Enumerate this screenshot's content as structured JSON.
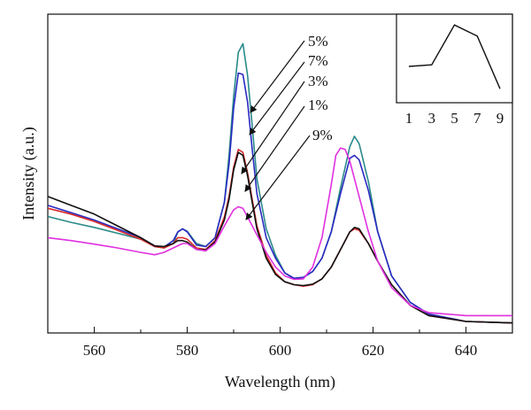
{
  "chart_data": {
    "type": "line",
    "xlabel": "Wavelength (nm)",
    "ylabel": "Intensity (a.u.)",
    "xlim": [
      550,
      650
    ],
    "ylim": [
      0,
      1
    ],
    "x_ticks": [
      560,
      580,
      600,
      620,
      640
    ],
    "y_ticks_shown": false,
    "grid": false,
    "series": [
      {
        "name": "5%",
        "color": "#2a8a8a",
        "points": [
          [
            550,
            0.372
          ],
          [
            555,
            0.352
          ],
          [
            560,
            0.335
          ],
          [
            565,
            0.315
          ],
          [
            570,
            0.295
          ],
          [
            573,
            0.27
          ],
          [
            575,
            0.265
          ],
          [
            577,
            0.28
          ],
          [
            578,
            0.32
          ],
          [
            579,
            0.33
          ],
          [
            580,
            0.322
          ],
          [
            582,
            0.28
          ],
          [
            584,
            0.27
          ],
          [
            586,
            0.3
          ],
          [
            588,
            0.42
          ],
          [
            589,
            0.58
          ],
          [
            590,
            0.78
          ],
          [
            591,
            0.93
          ],
          [
            592,
            0.96
          ],
          [
            593,
            0.85
          ],
          [
            594,
            0.68
          ],
          [
            595,
            0.5
          ],
          [
            597,
            0.33
          ],
          [
            599,
            0.24
          ],
          [
            601,
            0.18
          ],
          [
            603,
            0.16
          ],
          [
            605,
            0.165
          ],
          [
            607,
            0.185
          ],
          [
            609,
            0.23
          ],
          [
            611,
            0.32
          ],
          [
            613,
            0.47
          ],
          [
            615,
            0.61
          ],
          [
            616,
            0.645
          ],
          [
            617,
            0.62
          ],
          [
            619,
            0.49
          ],
          [
            621,
            0.32
          ],
          [
            624,
            0.17
          ],
          [
            628,
            0.08
          ],
          [
            632,
            0.04
          ],
          [
            640,
            0.015
          ],
          [
            650,
            0.01
          ]
        ]
      },
      {
        "name": "7%",
        "color": "#2a2ac0",
        "points": [
          [
            550,
            0.41
          ],
          [
            555,
            0.385
          ],
          [
            560,
            0.36
          ],
          [
            565,
            0.33
          ],
          [
            570,
            0.3
          ],
          [
            573,
            0.272
          ],
          [
            575,
            0.268
          ],
          [
            577,
            0.29
          ],
          [
            578,
            0.32
          ],
          [
            579,
            0.33
          ],
          [
            580,
            0.32
          ],
          [
            582,
            0.275
          ],
          [
            584,
            0.27
          ],
          [
            586,
            0.3
          ],
          [
            588,
            0.42
          ],
          [
            589,
            0.55
          ],
          [
            590,
            0.74
          ],
          [
            591,
            0.86
          ],
          [
            592,
            0.855
          ],
          [
            593,
            0.76
          ],
          [
            594,
            0.6
          ],
          [
            595,
            0.45
          ],
          [
            597,
            0.3
          ],
          [
            599,
            0.23
          ],
          [
            601,
            0.18
          ],
          [
            603,
            0.162
          ],
          [
            605,
            0.165
          ],
          [
            607,
            0.185
          ],
          [
            609,
            0.23
          ],
          [
            611,
            0.32
          ],
          [
            613,
            0.45
          ],
          [
            615,
            0.57
          ],
          [
            616,
            0.58
          ],
          [
            617,
            0.565
          ],
          [
            619,
            0.46
          ],
          [
            621,
            0.32
          ],
          [
            624,
            0.17
          ],
          [
            628,
            0.08
          ],
          [
            632,
            0.04
          ],
          [
            640,
            0.015
          ],
          [
            650,
            0.01
          ]
        ]
      },
      {
        "name": "3%",
        "color": "#d92a2a",
        "points": [
          [
            550,
            0.4
          ],
          [
            555,
            0.38
          ],
          [
            560,
            0.355
          ],
          [
            565,
            0.325
          ],
          [
            570,
            0.295
          ],
          [
            573,
            0.27
          ],
          [
            575,
            0.265
          ],
          [
            577,
            0.28
          ],
          [
            578,
            0.3
          ],
          [
            579,
            0.3
          ],
          [
            580,
            0.295
          ],
          [
            582,
            0.265
          ],
          [
            584,
            0.26
          ],
          [
            586,
            0.29
          ],
          [
            588,
            0.37
          ],
          [
            589,
            0.44
          ],
          [
            590,
            0.54
          ],
          [
            591,
            0.6
          ],
          [
            592,
            0.59
          ],
          [
            593,
            0.52
          ],
          [
            594,
            0.43
          ],
          [
            595,
            0.34
          ],
          [
            597,
            0.24
          ],
          [
            599,
            0.18
          ],
          [
            601,
            0.15
          ],
          [
            603,
            0.14
          ],
          [
            605,
            0.135
          ],
          [
            607,
            0.14
          ],
          [
            609,
            0.16
          ],
          [
            611,
            0.2
          ],
          [
            613,
            0.26
          ],
          [
            615,
            0.32
          ],
          [
            616,
            0.33
          ],
          [
            617,
            0.325
          ],
          [
            619,
            0.28
          ],
          [
            621,
            0.22
          ],
          [
            624,
            0.14
          ],
          [
            628,
            0.07
          ],
          [
            632,
            0.035
          ],
          [
            640,
            0.015
          ],
          [
            650,
            0.01
          ]
        ]
      },
      {
        "name": "1%",
        "color": "#111111",
        "points": [
          [
            550,
            0.44
          ],
          [
            555,
            0.41
          ],
          [
            560,
            0.38
          ],
          [
            565,
            0.34
          ],
          [
            570,
            0.3
          ],
          [
            573,
            0.272
          ],
          [
            575,
            0.27
          ],
          [
            577,
            0.28
          ],
          [
            578,
            0.29
          ],
          [
            579,
            0.29
          ],
          [
            580,
            0.285
          ],
          [
            582,
            0.26
          ],
          [
            584,
            0.258
          ],
          [
            586,
            0.285
          ],
          [
            588,
            0.36
          ],
          [
            589,
            0.43
          ],
          [
            590,
            0.53
          ],
          [
            591,
            0.59
          ],
          [
            592,
            0.58
          ],
          [
            593,
            0.51
          ],
          [
            594,
            0.42
          ],
          [
            595,
            0.33
          ],
          [
            597,
            0.23
          ],
          [
            599,
            0.175
          ],
          [
            601,
            0.15
          ],
          [
            603,
            0.14
          ],
          [
            605,
            0.137
          ],
          [
            607,
            0.142
          ],
          [
            609,
            0.16
          ],
          [
            611,
            0.2
          ],
          [
            613,
            0.26
          ],
          [
            615,
            0.32
          ],
          [
            616,
            0.335
          ],
          [
            617,
            0.33
          ],
          [
            619,
            0.28
          ],
          [
            621,
            0.22
          ],
          [
            624,
            0.14
          ],
          [
            628,
            0.07
          ],
          [
            632,
            0.035
          ],
          [
            640,
            0.015
          ],
          [
            650,
            0.01
          ]
        ]
      },
      {
        "name": "9%",
        "color": "#e030e0",
        "points": [
          [
            550,
            0.3
          ],
          [
            555,
            0.29
          ],
          [
            560,
            0.278
          ],
          [
            565,
            0.265
          ],
          [
            570,
            0.25
          ],
          [
            573,
            0.242
          ],
          [
            575,
            0.25
          ],
          [
            577,
            0.265
          ],
          [
            579,
            0.28
          ],
          [
            580,
            0.28
          ],
          [
            582,
            0.26
          ],
          [
            584,
            0.255
          ],
          [
            586,
            0.28
          ],
          [
            588,
            0.34
          ],
          [
            590,
            0.395
          ],
          [
            591,
            0.405
          ],
          [
            592,
            0.4
          ],
          [
            593,
            0.37
          ],
          [
            595,
            0.31
          ],
          [
            597,
            0.25
          ],
          [
            599,
            0.2
          ],
          [
            601,
            0.17
          ],
          [
            603,
            0.158
          ],
          [
            605,
            0.16
          ],
          [
            607,
            0.2
          ],
          [
            609,
            0.3
          ],
          [
            611,
            0.48
          ],
          [
            612,
            0.58
          ],
          [
            613,
            0.605
          ],
          [
            614,
            0.6
          ],
          [
            615,
            0.56
          ],
          [
            617,
            0.44
          ],
          [
            619,
            0.32
          ],
          [
            621,
            0.22
          ],
          [
            624,
            0.13
          ],
          [
            628,
            0.07
          ],
          [
            632,
            0.045
          ],
          [
            640,
            0.035
          ],
          [
            650,
            0.035
          ]
        ]
      }
    ],
    "inset": {
      "type": "line",
      "x_ticks": [
        1,
        3,
        5,
        7,
        9
      ],
      "x": [
        1,
        3,
        5,
        7,
        9
      ],
      "y": [
        0.4,
        0.42,
        0.92,
        0.78,
        0.12
      ],
      "ylim": [
        0,
        1
      ],
      "xlim": [
        0,
        10
      ]
    },
    "annotations": [
      "5%",
      "7%",
      "3%",
      "1%",
      "9%"
    ]
  }
}
